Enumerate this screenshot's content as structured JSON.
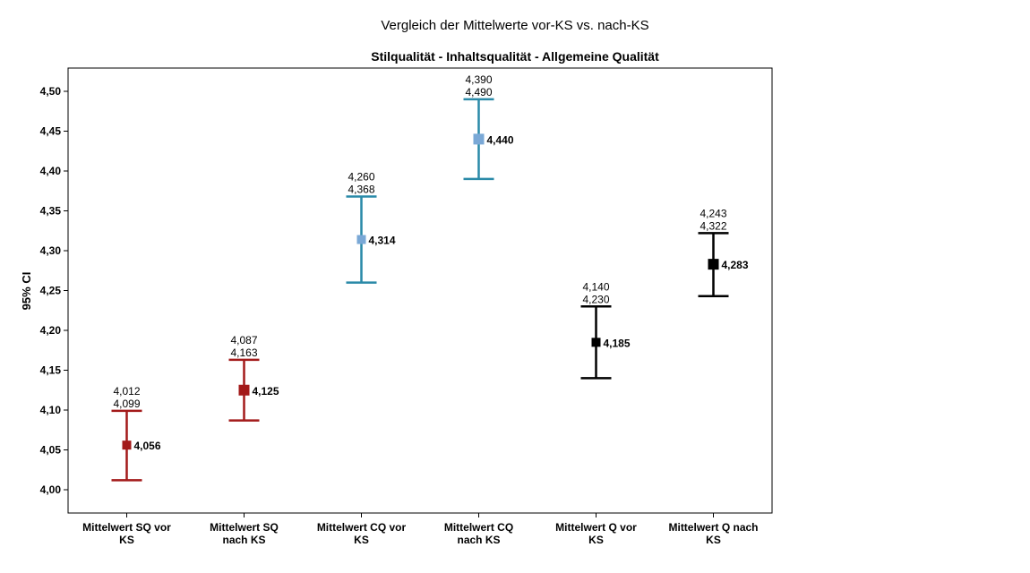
{
  "chart_data": {
    "type": "errorbar",
    "title": "Vergleich der Mittelwerte vor-KS vs. nach-KS",
    "subtitle": "Stilqualität - Inhaltsqualität - Allgemeine Qualität",
    "ylabel": "95% CI",
    "xlabel": "",
    "ylim": [
      3.975,
      4.535
    ],
    "yticks": [
      "4,00",
      "4,05",
      "4,10",
      "4,15",
      "4,20",
      "4,25",
      "4,30",
      "4,35",
      "4,40",
      "4,45",
      "4,50"
    ],
    "grid": false,
    "legend": "none",
    "categories": [
      {
        "label_line1": "Mittelwert SQ vor",
        "label_line2": "KS",
        "mean": 4.056,
        "lower": 4.012,
        "upper": 4.099,
        "mean_label": "4,056",
        "lower_label": "4,012",
        "upper_label": "4,099",
        "color": "#a31a1a",
        "marker_color": "#a31a1a"
      },
      {
        "label_line1": "Mittelwert SQ",
        "label_line2": "nach KS",
        "mean": 4.125,
        "lower": 4.087,
        "upper": 4.163,
        "mean_label": "4,125",
        "lower_label": "4,087",
        "upper_label": "4,163",
        "color": "#a31a1a",
        "marker_color": "#a31a1a"
      },
      {
        "label_line1": "Mittelwert CQ vor",
        "label_line2": "KS",
        "mean": 4.314,
        "lower": 4.26,
        "upper": 4.368,
        "mean_label": "4,314",
        "lower_label": "4,260",
        "upper_label": "4,368",
        "color": "#2a8aa8",
        "marker_color": "#7aa8d6"
      },
      {
        "label_line1": "Mittelwert CQ",
        "label_line2": "nach KS",
        "mean": 4.44,
        "lower": 4.39,
        "upper": 4.49,
        "mean_label": "4,440",
        "lower_label": "4,390",
        "upper_label": "4,490",
        "color": "#2a8aa8",
        "marker_color": "#7aa8d6"
      },
      {
        "label_line1": "Mittelwert Q vor",
        "label_line2": "KS",
        "mean": 4.185,
        "lower": 4.14,
        "upper": 4.23,
        "mean_label": "4,185",
        "lower_label": "4,140",
        "upper_label": "4,230",
        "color": "#000000",
        "marker_color": "#000000"
      },
      {
        "label_line1": "Mittelwert Q nach",
        "label_line2": "KS",
        "mean": 4.283,
        "lower": 4.243,
        "upper": 4.322,
        "mean_label": "4,283",
        "lower_label": "4,243",
        "upper_label": "4,322",
        "color": "#000000",
        "marker_color": "#000000"
      }
    ]
  }
}
